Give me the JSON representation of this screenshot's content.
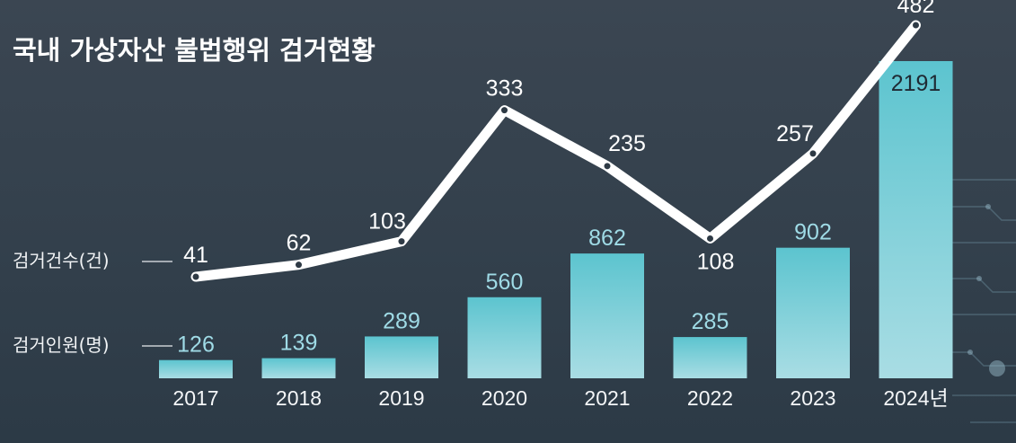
{
  "chart_data": {
    "type": "bar+line",
    "title": "국내 가상자산 불법행위 검거현황",
    "categories": [
      "2017",
      "2018",
      "2019",
      "2020",
      "2021",
      "2022",
      "2023",
      "2024년"
    ],
    "series": [
      {
        "name": "검거인원(명)",
        "type": "bar",
        "values": [
          126,
          139,
          289,
          560,
          862,
          285,
          902,
          2191
        ],
        "color": "#5cc4cf"
      },
      {
        "name": "검거건수(건)",
        "type": "line",
        "values": [
          41,
          62,
          103,
          333,
          235,
          108,
          257,
          482
        ],
        "color": "#ffffff"
      }
    ],
    "legend": [
      "검거건수(건)",
      "검거인원(명)"
    ],
    "legend_position": "left",
    "grid": false
  },
  "colors": {
    "bar_top": "#5cc4cf",
    "bar_bottom": "#a9dde4",
    "line": "#ffffff",
    "background": "#36424e"
  }
}
